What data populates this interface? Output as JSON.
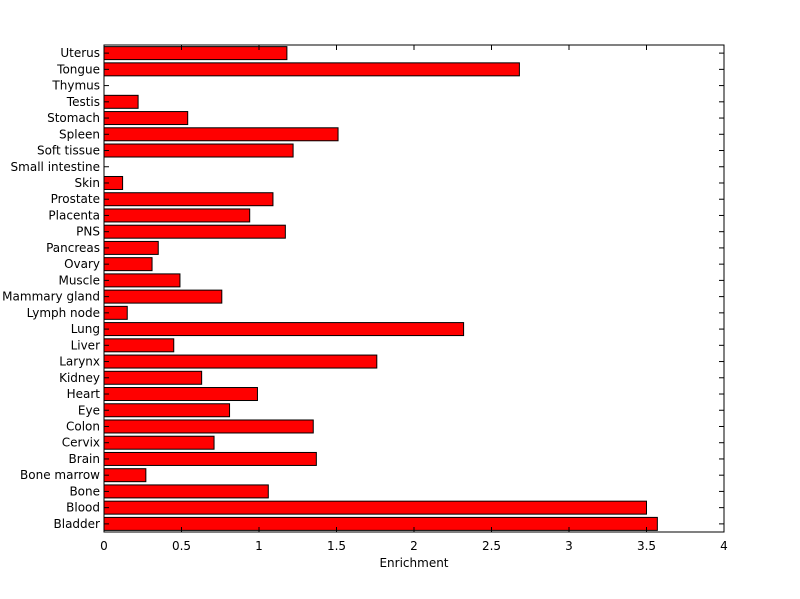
{
  "chart_data": {
    "type": "bar",
    "orientation": "horizontal",
    "title": "",
    "xlabel": "Enrichment",
    "ylabel": "",
    "xlim": [
      0,
      4
    ],
    "xticks": [
      "0",
      "0.5",
      "1",
      "1.5",
      "2",
      "2.5",
      "3",
      "3.5",
      "4"
    ],
    "xtick_values": [
      0,
      0.5,
      1,
      1.5,
      2,
      2.5,
      3,
      3.5,
      4
    ],
    "grid": false,
    "legend": "none",
    "bar_color": "#ff0000",
    "categories": [
      "Bladder",
      "Blood",
      "Bone",
      "Bone marrow",
      "Brain",
      "Cervix",
      "Colon",
      "Eye",
      "Heart",
      "Kidney",
      "Larynx",
      "Liver",
      "Lung",
      "Lymph node",
      "Mammary gland",
      "Muscle",
      "Ovary",
      "Pancreas",
      "PNS",
      "Placenta",
      "Prostate",
      "Skin",
      "Small intestine",
      "Soft tissue",
      "Spleen",
      "Stomach",
      "Testis",
      "Thymus",
      "Tongue",
      "Uterus"
    ],
    "values": [
      3.57,
      3.5,
      1.06,
      0.27,
      1.37,
      0.71,
      1.35,
      0.81,
      0.99,
      0.63,
      1.76,
      0.45,
      2.32,
      0.15,
      0.76,
      0.49,
      0.31,
      0.35,
      1.17,
      0.94,
      1.09,
      0.12,
      0,
      1.22,
      1.51,
      0.54,
      0.22,
      0,
      2.68,
      1.18
    ]
  }
}
